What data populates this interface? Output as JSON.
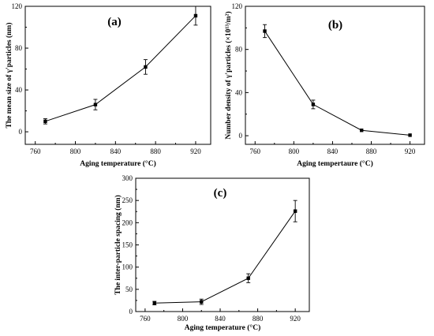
{
  "chart_data": [
    {
      "type": "line",
      "panel_label": "(a)",
      "xlabel": "Aging temperature (°C)",
      "ylabel": "The mean size of γ′particles (nm)",
      "xlim": [
        750,
        935
      ],
      "ylim": [
        -12,
        120
      ],
      "xticks": [
        760,
        800,
        840,
        880,
        920
      ],
      "yticks": [
        0,
        40,
        80,
        120
      ],
      "x": [
        770,
        820,
        870,
        920
      ],
      "y": [
        10,
        26,
        62,
        111
      ],
      "err": [
        2.5,
        5,
        7,
        9
      ],
      "grid": false,
      "legend": "none"
    },
    {
      "type": "line",
      "panel_label": "(b)",
      "xlabel": "Aging tempertaure (°C)",
      "ylabel": "Number density of γ′particles (×10¹³/m²)",
      "xlim": [
        750,
        935
      ],
      "ylim": [
        -8,
        120
      ],
      "xticks": [
        760,
        800,
        840,
        880,
        920
      ],
      "yticks": [
        0,
        40,
        80,
        120
      ],
      "x": [
        770,
        820,
        870,
        920
      ],
      "y": [
        97,
        29,
        5,
        0.5
      ],
      "err": [
        6,
        4,
        0,
        0
      ],
      "grid": false,
      "legend": "none"
    },
    {
      "type": "line",
      "panel_label": "(c)",
      "xlabel": "Aging temperature (°C)",
      "ylabel": "The inter-particle spacing (nm)",
      "xlim": [
        750,
        935
      ],
      "ylim": [
        0,
        300
      ],
      "xticks": [
        760,
        800,
        840,
        880,
        920
      ],
      "yticks": [
        0,
        50,
        100,
        150,
        200,
        250,
        300
      ],
      "x": [
        770,
        820,
        870,
        920
      ],
      "y": [
        19,
        22,
        75,
        226
      ],
      "err": [
        4,
        6,
        10,
        24
      ],
      "grid": false,
      "legend": "none"
    }
  ]
}
